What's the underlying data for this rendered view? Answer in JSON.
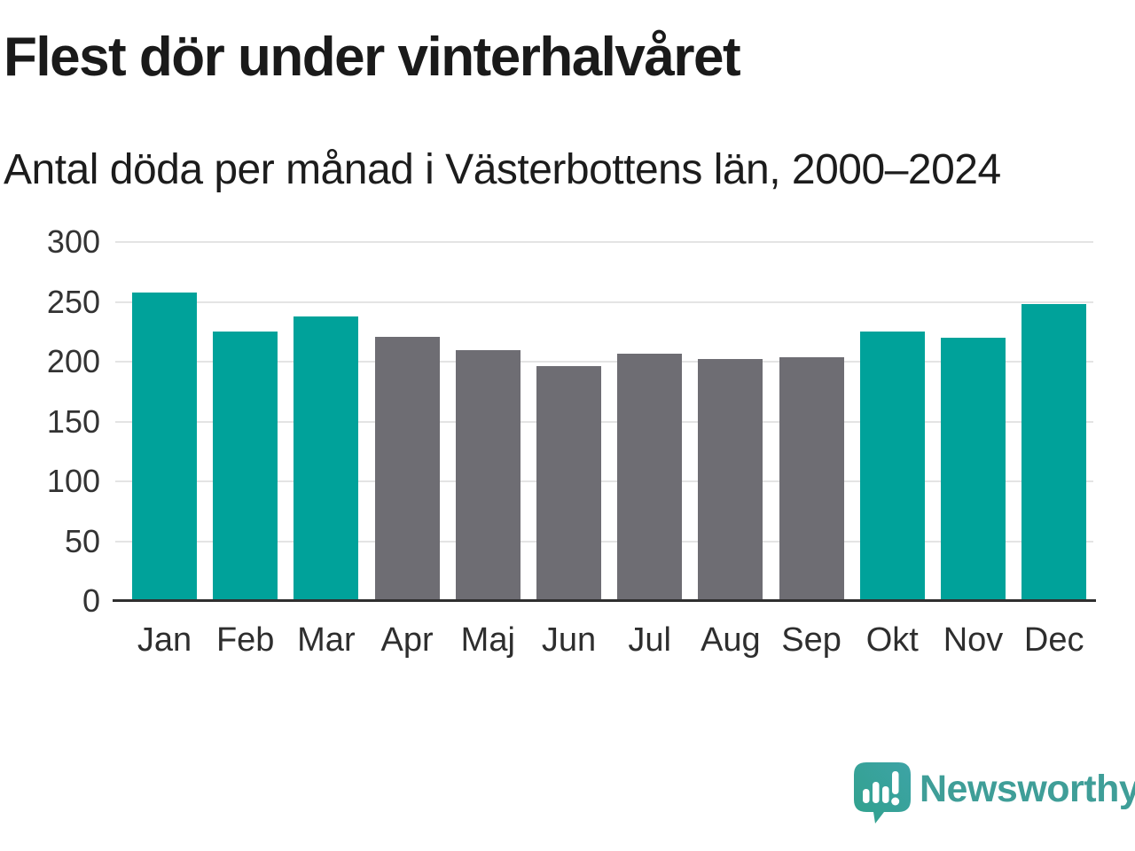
{
  "header": {
    "title": "Flest dör under vinterhalvåret",
    "subtitle": "Antal döda per månad i Västerbottens län, 2000–2024"
  },
  "chart_data": {
    "type": "bar",
    "title": "Flest dör under vinterhalvåret",
    "subtitle": "Antal döda per månad i Västerbottens län, 2000–2024",
    "categories": [
      "Jan",
      "Feb",
      "Mar",
      "Apr",
      "Maj",
      "Jun",
      "Jul",
      "Aug",
      "Sep",
      "Okt",
      "Nov",
      "Dec"
    ],
    "values": [
      258,
      225,
      238,
      221,
      210,
      196,
      207,
      202,
      204,
      225,
      220,
      248
    ],
    "highlighted": [
      true,
      true,
      true,
      false,
      false,
      false,
      false,
      false,
      false,
      true,
      true,
      true
    ],
    "highlight_color": "#00a29a",
    "base_color": "#6e6d73",
    "xlabel": "",
    "ylabel": "",
    "ylim": [
      0,
      300
    ],
    "yticks": [
      0,
      50,
      100,
      150,
      200,
      250,
      300
    ],
    "grid": true,
    "legend": "none",
    "gridline_color": "#e4e4e4",
    "axis_line_color": "#2f2f2f"
  },
  "footer": {
    "brand": "Newsworthy",
    "brand_color": "#3f9e98",
    "logo_icon": "speech-bubble-bar-chart-icon"
  }
}
